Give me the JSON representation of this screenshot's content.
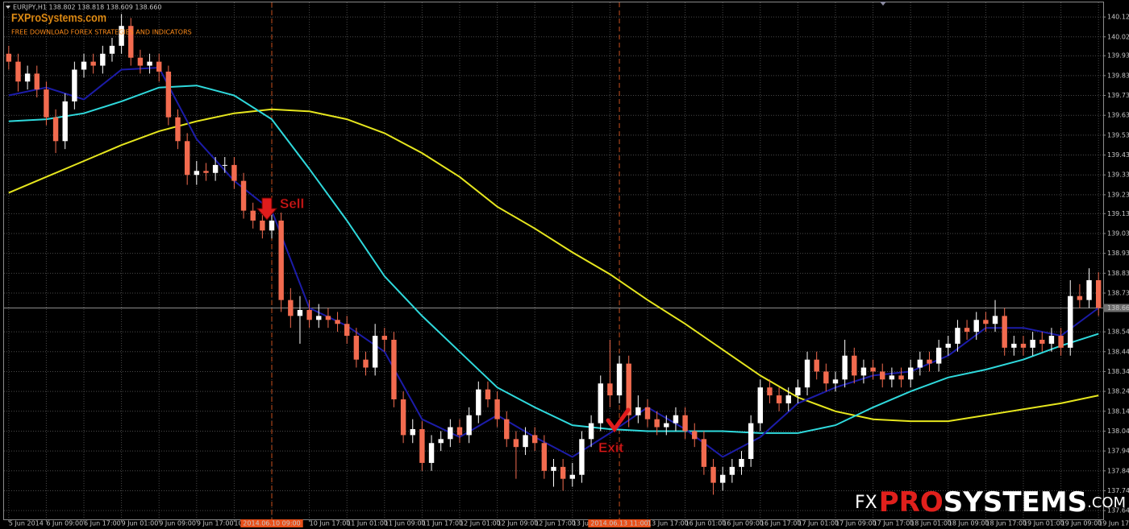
{
  "header": "EURJPY,H1  138.802 138.818 138.609 138.660",
  "watermark": {
    "title": "FXProSystems.com",
    "subtitle": "FREE DOWNLOAD FOREX STRATEGIES AND INDICATORS"
  },
  "logo": {
    "prefix": "FX",
    "accent": "PRO",
    "main": "SYSTEMS",
    "suffix": ".COM"
  },
  "annotations": {
    "sell": "Sell",
    "exit": "Exit"
  },
  "chart_data": {
    "type": "candlestick",
    "up_color": "#ffffff",
    "down_color": "#f26b4f",
    "grid": true,
    "ylim": [
      137.6,
      140.17
    ],
    "yticks": [
      140.125,
      140.025,
      {
        "value": 139.93,
        "label": "139.930"
      },
      {
        "value": 139.83,
        "label": "139.830"
      },
      {
        "value": 139.73,
        "label": "139.730"
      },
      {
        "value": 139.63,
        "label": "139.630"
      },
      {
        "value": 139.53,
        "label": "139.530"
      },
      {
        "value": 139.43,
        "label": "139.430"
      },
      {
        "value": 139.33,
        "label": "139.330"
      },
      {
        "value": 139.23,
        "label": "139.230"
      },
      139.135,
      139.035,
      138.935,
      138.835,
      138.735,
      {
        "value": 138.54,
        "label": "138.540"
      },
      {
        "value": 138.44,
        "label": "138.440"
      },
      {
        "value": 138.34,
        "label": "138.340"
      },
      {
        "value": 138.24,
        "label": "138.240"
      },
      {
        "value": 138.14,
        "label": "138.140"
      },
      {
        "value": 138.04,
        "label": "138.040"
      },
      {
        "value": 137.94,
        "label": "137.940"
      },
      {
        "value": 137.84,
        "label": "137.840"
      },
      {
        "value": 137.74,
        "label": "137.740"
      },
      {
        "value": 137.64,
        "label": "137.640"
      }
    ],
    "current_price": {
      "value": 138.66,
      "label": "138.660"
    },
    "highlighted_categories": [
      28,
      65
    ],
    "categories": [
      "5 Jun 2014",
      null,
      null,
      null,
      "6 Jun 09:00",
      null,
      null,
      null,
      "6 Jun 17:00",
      null,
      null,
      null,
      "9 Jun 01:00",
      null,
      null,
      null,
      "9 Jun 09:00",
      null,
      null,
      null,
      "9 Jun 17:00",
      null,
      null,
      null,
      "10 Jun 01:00",
      null,
      null,
      null,
      "2014.06.10 09:00",
      null,
      null,
      null,
      "10 Jun 17:00",
      null,
      null,
      null,
      "11 Jun 01:00",
      null,
      null,
      null,
      "11 Jun 09:00",
      null,
      null,
      null,
      "11 Jun 17:00",
      null,
      null,
      null,
      "12 Jun 01:00",
      null,
      null,
      null,
      "12 Jun 09:00",
      null,
      null,
      null,
      "12 Jun 17:00",
      null,
      null,
      null,
      "13 Jun 01",
      null,
      null,
      null,
      null,
      "2014.06.13 11:00",
      null,
      null,
      "13 Jun 17:00",
      null,
      null,
      null,
      "16 Jun 01:00",
      null,
      null,
      null,
      "16 Jun 09:00",
      null,
      null,
      null,
      "16 Jun 17:00",
      null,
      null,
      null,
      "17 Jun 01:00",
      null,
      null,
      null,
      "17 Jun 09:00",
      null,
      null,
      null,
      "17 Jun 17:00",
      null,
      null,
      null,
      "18 Jun 01:00",
      null,
      null,
      null,
      "18 Jun 09:00",
      null,
      null,
      null,
      "18 Jun 17:00",
      null,
      null,
      null,
      "19 Jun 01:00",
      null,
      null,
      null,
      "19 Jun 09:00",
      null,
      null,
      null,
      "19 Jun 17:00"
    ],
    "candles": [
      [
        139.94,
        139.98,
        139.86,
        139.9
      ],
      [
        139.9,
        139.94,
        139.75,
        139.8
      ],
      [
        139.8,
        139.88,
        139.76,
        139.84
      ],
      [
        139.84,
        139.88,
        139.72,
        139.76
      ],
      [
        139.76,
        139.8,
        139.58,
        139.62
      ],
      [
        139.62,
        139.66,
        139.44,
        139.5
      ],
      [
        139.5,
        139.74,
        139.46,
        139.7
      ],
      [
        139.7,
        139.9,
        139.66,
        139.86
      ],
      [
        139.86,
        139.94,
        139.82,
        139.9
      ],
      [
        139.9,
        139.94,
        139.84,
        139.88
      ],
      [
        139.88,
        139.98,
        139.84,
        139.94
      ],
      [
        139.94,
        140.02,
        139.9,
        139.98
      ],
      [
        139.98,
        140.14,
        139.94,
        140.08
      ],
      [
        140.08,
        140.12,
        139.88,
        139.92
      ],
      [
        139.92,
        139.96,
        139.84,
        139.88
      ],
      [
        139.88,
        139.94,
        139.84,
        139.9
      ],
      [
        139.9,
        139.94,
        139.8,
        139.85
      ],
      [
        139.85,
        139.88,
        139.58,
        139.62
      ],
      [
        139.62,
        139.66,
        139.46,
        139.5
      ],
      [
        139.5,
        139.54,
        139.28,
        139.33
      ],
      [
        139.33,
        139.4,
        139.28,
        139.35
      ],
      [
        139.35,
        139.39,
        139.3,
        139.34
      ],
      [
        139.34,
        139.42,
        139.3,
        139.38
      ],
      [
        139.38,
        139.42,
        139.34,
        139.38
      ],
      [
        139.38,
        139.42,
        139.26,
        139.3
      ],
      [
        139.3,
        139.34,
        139.11,
        139.15
      ],
      [
        139.15,
        139.19,
        139.06,
        139.1
      ],
      [
        139.1,
        139.14,
        139.01,
        139.05
      ],
      [
        139.05,
        139.16,
        139.01,
        139.1
      ],
      [
        139.1,
        139.14,
        138.64,
        138.7
      ],
      [
        138.7,
        138.76,
        138.56,
        138.62
      ],
      [
        138.62,
        138.72,
        138.48,
        138.65
      ],
      [
        138.65,
        138.7,
        138.56,
        138.6
      ],
      [
        138.6,
        138.68,
        138.56,
        138.62
      ],
      [
        138.62,
        138.66,
        138.56,
        138.6
      ],
      [
        138.6,
        138.64,
        138.54,
        138.58
      ],
      [
        138.58,
        138.62,
        138.48,
        138.52
      ],
      [
        138.52,
        138.56,
        138.36,
        138.4
      ],
      [
        138.4,
        138.44,
        138.32,
        138.36
      ],
      [
        138.36,
        138.58,
        138.32,
        138.52
      ],
      [
        138.52,
        138.56,
        138.44,
        138.5
      ],
      [
        138.5,
        138.54,
        138.16,
        138.2
      ],
      [
        138.2,
        138.24,
        137.98,
        138.02
      ],
      [
        138.02,
        138.1,
        137.98,
        138.05
      ],
      [
        138.05,
        138.09,
        137.84,
        137.88
      ],
      [
        137.88,
        138.02,
        137.84,
        137.98
      ],
      [
        137.98,
        138.04,
        137.94,
        138.0
      ],
      [
        138.0,
        138.1,
        137.96,
        138.06
      ],
      [
        138.06,
        138.1,
        137.98,
        138.02
      ],
      [
        138.02,
        138.16,
        137.98,
        138.12
      ],
      [
        138.12,
        138.29,
        138.08,
        138.25
      ],
      [
        138.25,
        138.29,
        138.16,
        138.2
      ],
      [
        138.2,
        138.24,
        138.06,
        138.1
      ],
      [
        138.1,
        138.14,
        137.96,
        138.0
      ],
      [
        138.0,
        138.04,
        137.8,
        137.96
      ],
      [
        137.96,
        138.06,
        137.92,
        138.02
      ],
      [
        138.02,
        138.06,
        137.94,
        137.98
      ],
      [
        137.98,
        138.02,
        137.8,
        137.84
      ],
      [
        137.84,
        137.9,
        137.76,
        137.86
      ],
      [
        137.86,
        137.9,
        137.74,
        137.8
      ],
      [
        137.8,
        137.88,
        137.76,
        137.82
      ],
      [
        137.82,
        138.04,
        137.78,
        138.0
      ],
      [
        138.0,
        138.12,
        137.96,
        138.08
      ],
      [
        138.08,
        138.32,
        138.04,
        138.28
      ],
      [
        138.28,
        138.5,
        138.16,
        138.22
      ],
      [
        138.22,
        138.42,
        138.18,
        138.38
      ],
      [
        138.38,
        138.42,
        138.06,
        138.12
      ],
      [
        138.12,
        138.22,
        138.08,
        138.16
      ],
      [
        138.16,
        138.2,
        138.06,
        138.1
      ],
      [
        138.1,
        138.14,
        138.02,
        138.06
      ],
      [
        138.06,
        138.12,
        138.02,
        138.08
      ],
      [
        138.08,
        138.16,
        138.04,
        138.12
      ],
      [
        138.12,
        138.16,
        138.0,
        138.04
      ],
      [
        138.04,
        138.08,
        137.96,
        138.0
      ],
      [
        138.0,
        138.04,
        137.82,
        137.86
      ],
      [
        137.86,
        137.9,
        137.72,
        137.78
      ],
      [
        137.78,
        137.86,
        137.74,
        137.82
      ],
      [
        137.82,
        137.9,
        137.78,
        137.86
      ],
      [
        137.86,
        137.94,
        137.82,
        137.9
      ],
      [
        137.9,
        138.12,
        137.86,
        138.08
      ],
      [
        138.08,
        138.3,
        138.04,
        138.26
      ],
      [
        138.26,
        138.3,
        138.18,
        138.22
      ],
      [
        138.22,
        138.26,
        138.14,
        138.18
      ],
      [
        138.18,
        138.26,
        138.14,
        138.22
      ],
      [
        138.22,
        138.3,
        138.18,
        138.26
      ],
      [
        138.26,
        138.44,
        138.22,
        138.4
      ],
      [
        138.4,
        138.44,
        138.3,
        138.34
      ],
      [
        138.34,
        138.38,
        138.24,
        138.28
      ],
      [
        138.28,
        138.34,
        138.24,
        138.3
      ],
      [
        138.3,
        138.5,
        138.26,
        138.42
      ],
      [
        138.42,
        138.46,
        138.28,
        138.32
      ],
      [
        138.32,
        138.4,
        138.28,
        138.36
      ],
      [
        138.36,
        138.4,
        138.3,
        138.34
      ],
      [
        138.34,
        138.38,
        138.26,
        138.3
      ],
      [
        138.3,
        138.36,
        138.26,
        138.32
      ],
      [
        138.32,
        138.36,
        138.26,
        138.3
      ],
      [
        138.3,
        138.4,
        138.26,
        138.36
      ],
      [
        138.36,
        138.44,
        138.32,
        138.4
      ],
      [
        138.4,
        138.44,
        138.34,
        138.38
      ],
      [
        138.38,
        138.5,
        138.34,
        138.46
      ],
      [
        138.46,
        138.52,
        138.42,
        138.48
      ],
      [
        138.48,
        138.6,
        138.44,
        138.56
      ],
      [
        138.56,
        138.6,
        138.5,
        138.54
      ],
      [
        138.54,
        138.64,
        138.5,
        138.6
      ],
      [
        138.6,
        138.64,
        138.54,
        138.58
      ],
      [
        138.58,
        138.7,
        138.54,
        138.62
      ],
      [
        138.62,
        138.66,
        138.42,
        138.46
      ],
      [
        138.46,
        138.52,
        138.42,
        138.48
      ],
      [
        138.48,
        138.52,
        138.42,
        138.46
      ],
      [
        138.46,
        138.54,
        138.42,
        138.5
      ],
      [
        138.5,
        138.54,
        138.44,
        138.48
      ],
      [
        138.48,
        138.56,
        138.44,
        138.52
      ],
      [
        138.52,
        138.56,
        138.42,
        138.46
      ],
      [
        138.46,
        138.8,
        138.42,
        138.72
      ],
      [
        138.72,
        138.78,
        138.66,
        138.7
      ],
      [
        138.7,
        138.86,
        138.66,
        138.8
      ],
      [
        138.8,
        138.84,
        138.62,
        138.66
      ]
    ],
    "overlay_x": [
      0,
      4,
      8,
      12,
      16,
      20,
      24,
      28,
      32,
      36,
      40,
      44,
      48,
      52,
      56,
      60,
      64,
      68,
      72,
      76,
      80,
      84,
      88,
      92,
      96,
      100,
      104,
      108,
      112,
      116
    ],
    "overlays": [
      {
        "color": "#e6e61e",
        "values": [
          139.24,
          139.32,
          139.4,
          139.48,
          139.55,
          139.6,
          139.64,
          139.66,
          139.65,
          139.61,
          139.54,
          139.44,
          139.32,
          139.17,
          139.06,
          138.94,
          138.83,
          138.7,
          138.58,
          138.45,
          138.32,
          138.21,
          138.14,
          138.1,
          138.09,
          138.09,
          138.12,
          138.15,
          138.18,
          138.22
        ]
      },
      {
        "color": "#2fd9dc",
        "values": [
          139.6,
          139.61,
          139.64,
          139.7,
          139.77,
          139.78,
          139.73,
          139.61,
          139.36,
          139.1,
          138.82,
          138.62,
          138.44,
          138.26,
          138.16,
          138.07,
          138.05,
          138.04,
          138.04,
          138.04,
          138.03,
          138.03,
          138.07,
          138.16,
          138.24,
          138.31,
          138.35,
          138.4,
          138.47,
          138.53
        ]
      },
      {
        "color": "#1c1ca8",
        "values": [
          139.73,
          139.77,
          139.71,
          139.86,
          139.87,
          139.51,
          139.3,
          139.15,
          138.66,
          138.57,
          138.44,
          138.1,
          138.01,
          138.12,
          138.01,
          137.91,
          138.03,
          138.16,
          138.05,
          137.91,
          138.01,
          138.18,
          138.26,
          138.32,
          138.34,
          138.42,
          138.56,
          138.56,
          138.52,
          138.66
        ]
      }
    ]
  }
}
